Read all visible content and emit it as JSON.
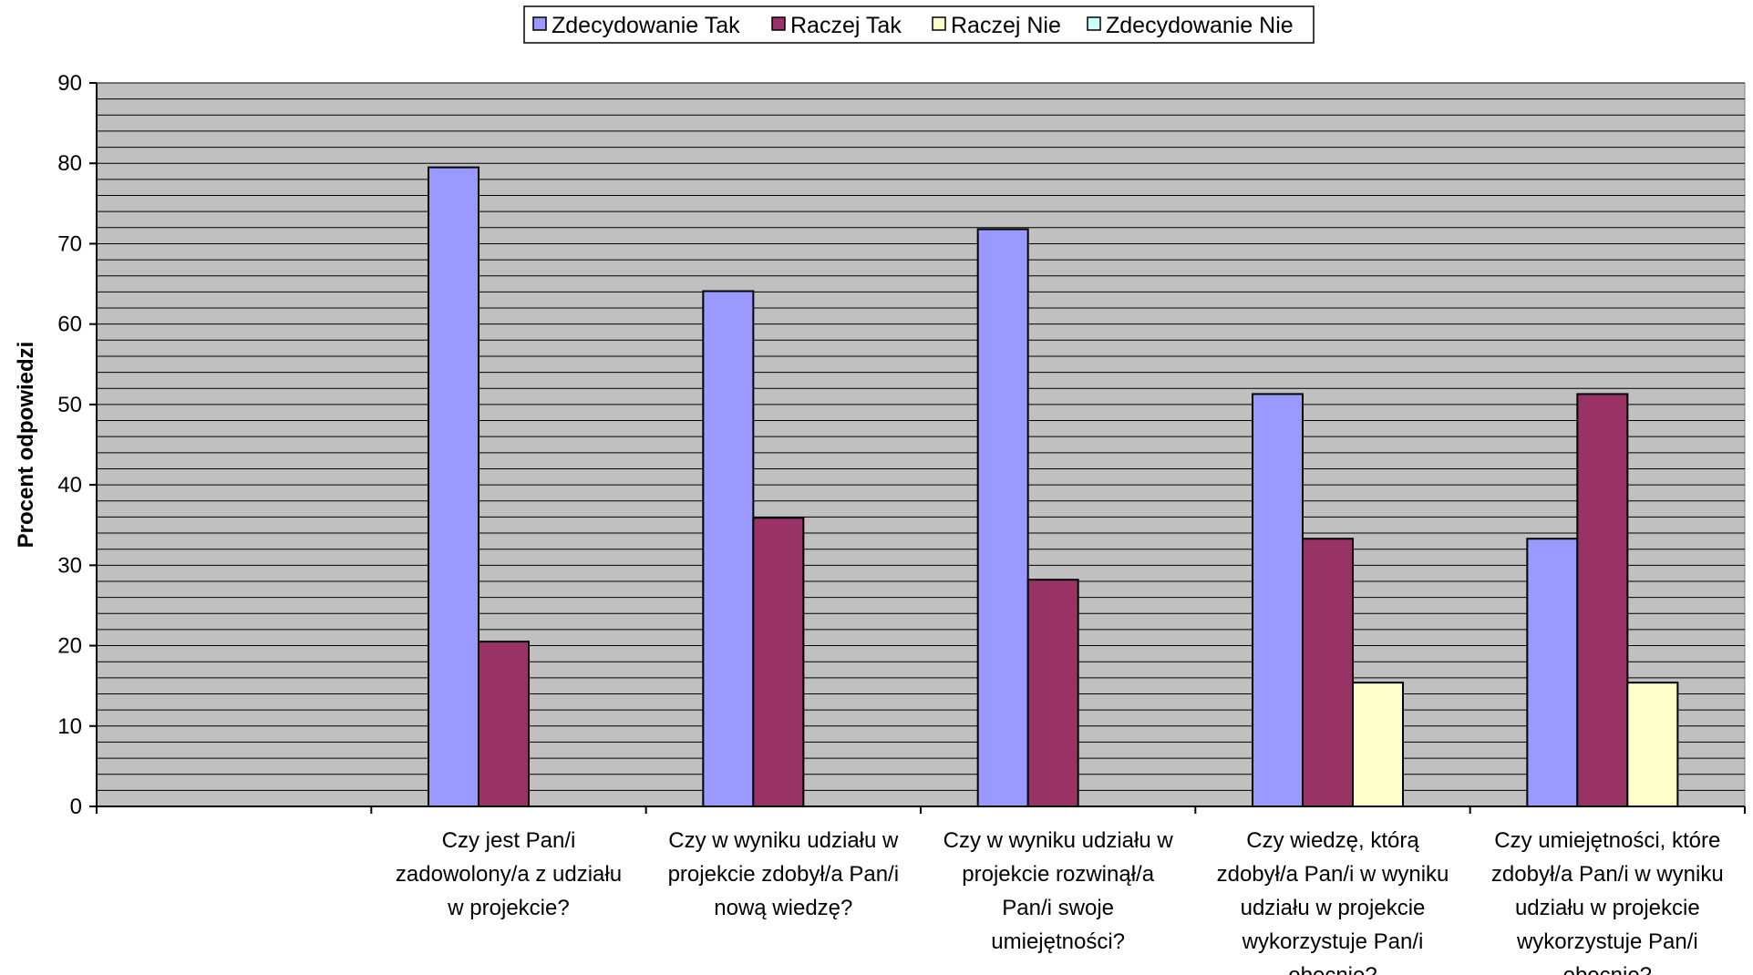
{
  "chart_data": {
    "type": "bar",
    "xlabel": "",
    "ylabel": "Procent odpowiedzi",
    "ylim": [
      0,
      90
    ],
    "major_ticks": [
      0,
      10,
      20,
      30,
      40,
      50,
      60,
      70,
      80,
      90
    ],
    "minor_grid_step": 2,
    "grid": true,
    "legend_position": "top",
    "categories": [
      [
        "Czy jest Pan/i",
        "zadowolony/a z udziału",
        "w projekcie?"
      ],
      [
        "Czy w wyniku udziału w",
        "projekcie zdobył/a Pan/i",
        "nową wiedzę?"
      ],
      [
        "Czy w wyniku udziału w",
        "projekcie rozwinął/a",
        "Pan/i swoje",
        "umiejętności?"
      ],
      [
        "Czy wiedzę, którą",
        "zdobył/a Pan/i w wyniku",
        "udziału w projekcie",
        "wykorzystuje Pan/i",
        "obecnie?"
      ],
      [
        "Czy umiejętności, które",
        "zdobył/a Pan/i w wyniku",
        "udziału w projekcie",
        "wykorzystuje Pan/i",
        "obecnie?"
      ]
    ],
    "empty_leading_categories": 1,
    "series": [
      {
        "name": "Zdecydowanie Tak",
        "color": "#9999ff",
        "values": [
          79.5,
          64.1,
          71.8,
          51.3,
          33.3
        ]
      },
      {
        "name": "Raczej Tak",
        "color": "#993366",
        "values": [
          20.5,
          35.9,
          28.2,
          33.3,
          51.3
        ]
      },
      {
        "name": "Raczej Nie",
        "color": "#ffffcc",
        "values": [
          0,
          0,
          0,
          15.4,
          15.4
        ]
      },
      {
        "name": "Zdecydowanie Nie",
        "color": "#ccffff",
        "values": [
          0,
          0,
          0,
          0,
          0
        ]
      }
    ],
    "plot_background": "#c0c0c0"
  }
}
